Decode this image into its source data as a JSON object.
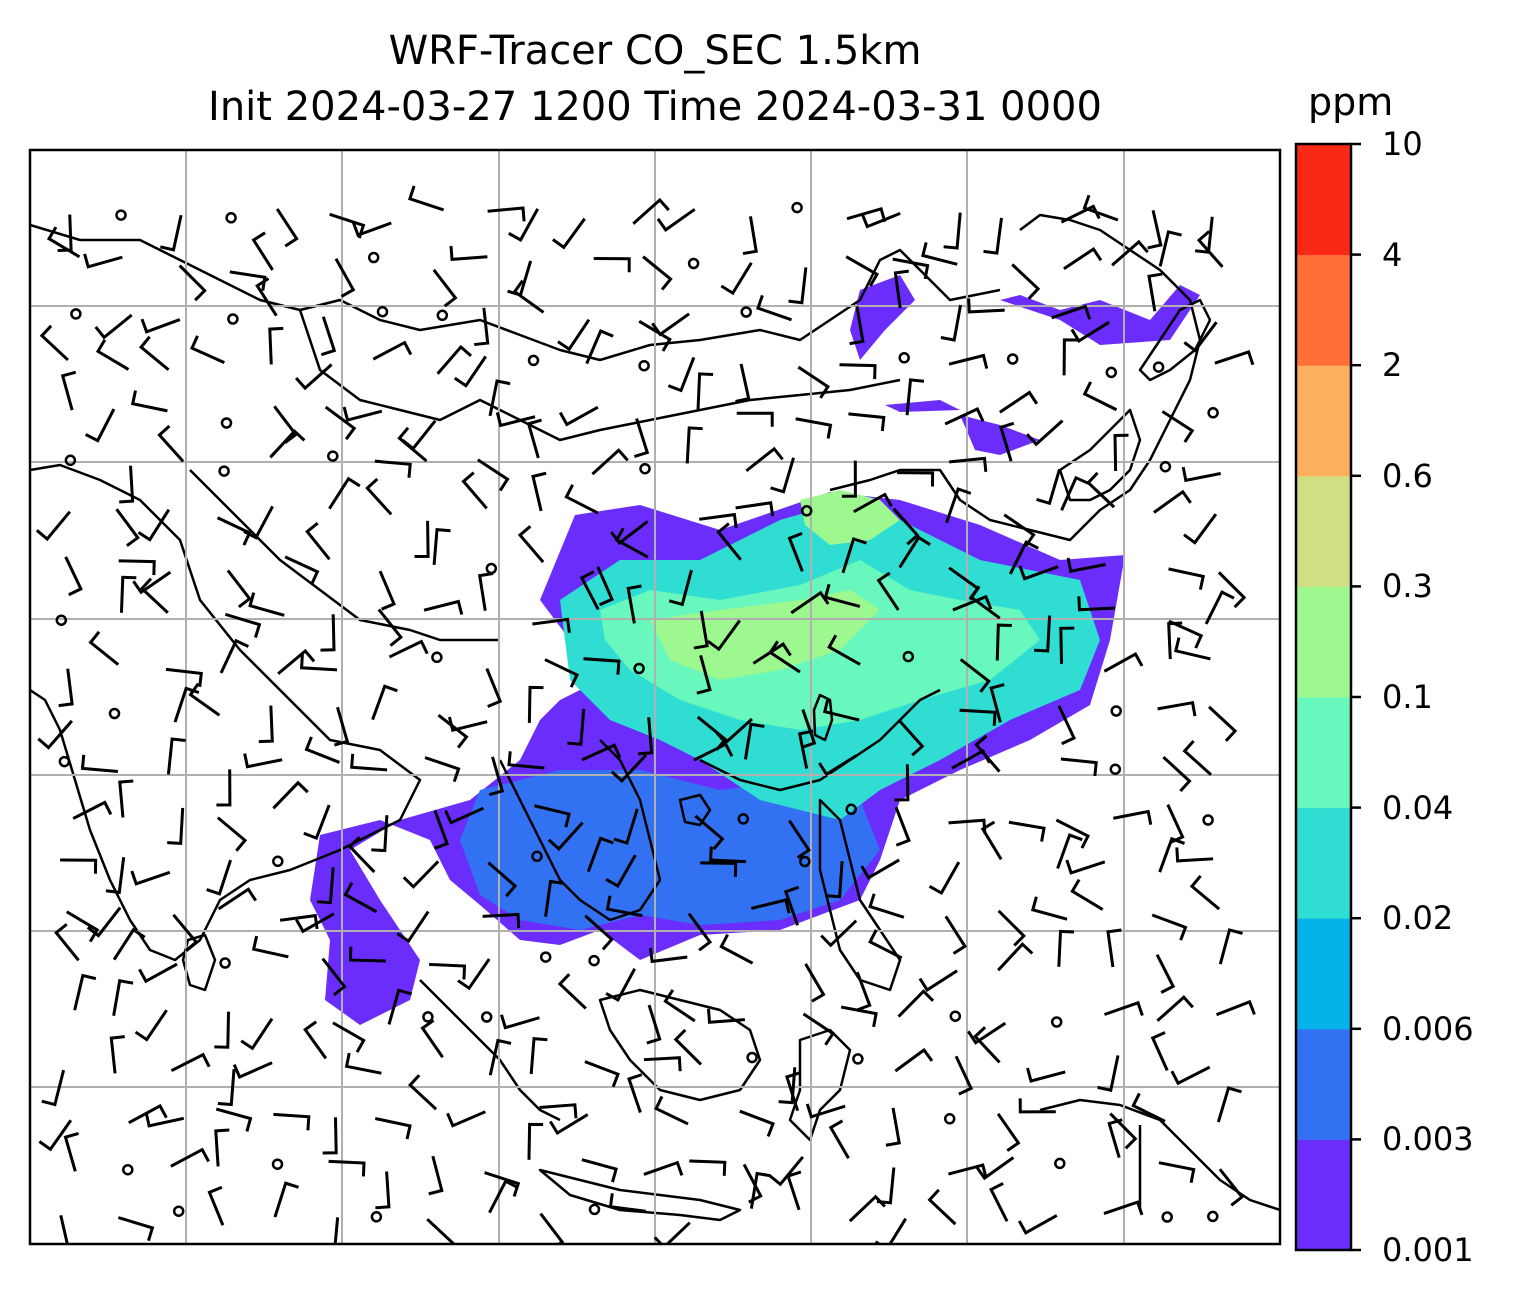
{
  "title_line1": "WRF-Tracer CO_SEC 1.5km",
  "title_line2": "Init 2024-03-27 1200 Time 2024-03-31 0000",
  "colorbar": {
    "unit": "ppm",
    "ticks": [
      "0.001",
      "0.003",
      "0.006",
      "0.02",
      "0.04",
      "0.1",
      "0.3",
      "0.6",
      "2",
      "4",
      "10"
    ],
    "colors": [
      "#6a2dfc",
      "#3272f2",
      "#05b3ea",
      "#2fddd2",
      "#68f7bd",
      "#9cf88f",
      "#d0df83",
      "#fdaf5d",
      "#ff7038",
      "#fa2916"
    ]
  },
  "map": {
    "grid_color": "#b0b0b0",
    "coastline_color": "#000000"
  }
}
